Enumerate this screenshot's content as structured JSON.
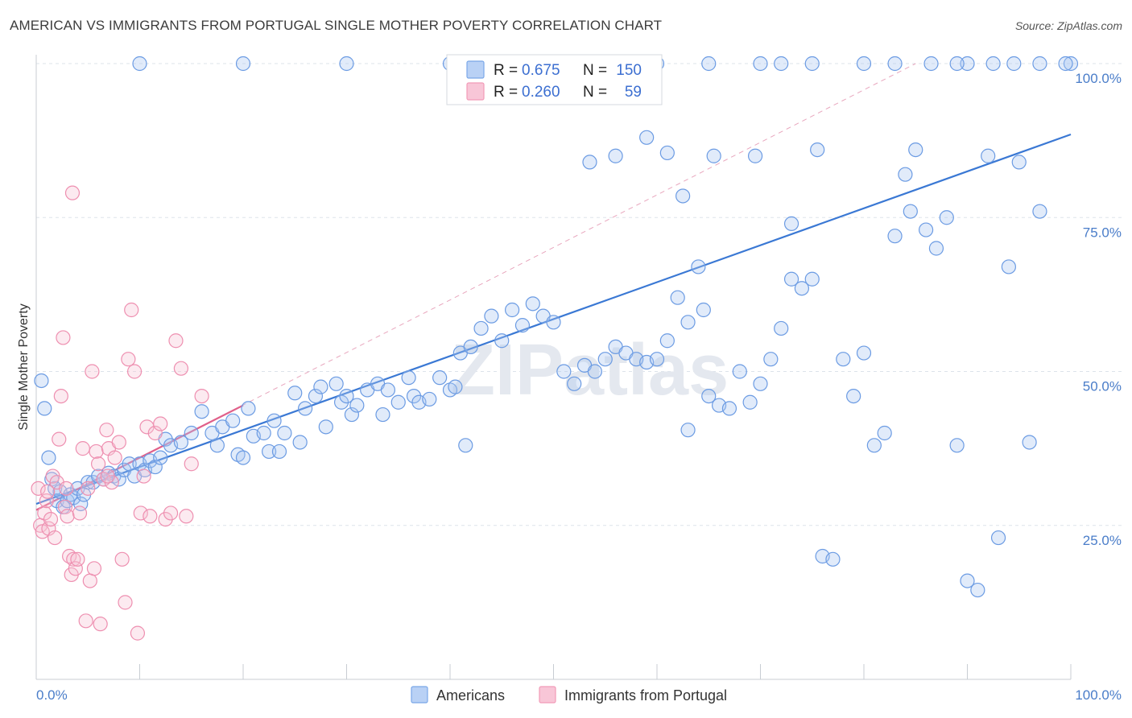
{
  "title": "AMERICAN VS IMMIGRANTS FROM PORTUGAL SINGLE MOTHER POVERTY CORRELATION CHART",
  "source": "Source: ZipAtlas.com",
  "watermark": "ZIPatlas",
  "chart_data": {
    "type": "scatter",
    "ylabel": "Single Mother Poverty",
    "xlim": [
      0,
      100
    ],
    "ylim": [
      0,
      100
    ],
    "x_tick_labels": [
      "0.0%",
      "100.0%"
    ],
    "y_ticks": [
      25,
      50,
      75,
      100
    ],
    "y_tick_labels": [
      "25.0%",
      "50.0%",
      "75.0%",
      "100.0%"
    ],
    "grid": true,
    "legend_top": [
      {
        "r_label": "R =",
        "r_value": "0.675",
        "n_label": "N =",
        "n_value": "150",
        "color": "#7aa7e8"
      },
      {
        "r_label": "R =",
        "r_value": "0.260",
        "n_label": "N =",
        "n_value": "59",
        "color": "#f29bb8"
      }
    ],
    "series": [
      {
        "name": "Americans",
        "color": "#7aa7e8",
        "line_color": "#3a78d4",
        "trend": {
          "x": [
            0,
            100
          ],
          "y": [
            28.5,
            88.5
          ]
        },
        "points": [
          [
            0.5,
            48.5
          ],
          [
            0.8,
            44
          ],
          [
            1.2,
            36
          ],
          [
            1.5,
            32.5
          ],
          [
            1.8,
            31
          ],
          [
            2,
            29
          ],
          [
            2.3,
            30.5
          ],
          [
            2.6,
            28
          ],
          [
            3,
            29
          ],
          [
            3.3,
            30
          ],
          [
            3.6,
            29.5
          ],
          [
            4,
            31
          ],
          [
            4.3,
            28.5
          ],
          [
            4.6,
            30
          ],
          [
            5,
            32
          ],
          [
            5.5,
            32
          ],
          [
            6,
            33
          ],
          [
            6.5,
            32.5
          ],
          [
            7,
            33.5
          ],
          [
            7.5,
            33
          ],
          [
            8,
            32.5
          ],
          [
            8.5,
            34
          ],
          [
            9,
            35
          ],
          [
            9.5,
            33
          ],
          [
            10,
            35
          ],
          [
            10.5,
            34
          ],
          [
            11,
            35.5
          ],
          [
            11.5,
            34.5
          ],
          [
            12,
            36
          ],
          [
            12.5,
            39
          ],
          [
            13,
            38
          ],
          [
            14,
            38.5
          ],
          [
            15,
            40
          ],
          [
            16,
            43.5
          ],
          [
            17,
            40
          ],
          [
            17.5,
            38
          ],
          [
            18,
            41
          ],
          [
            19,
            42
          ],
          [
            19.5,
            36.5
          ],
          [
            20,
            36
          ],
          [
            20.5,
            44
          ],
          [
            21,
            39.5
          ],
          [
            22,
            40
          ],
          [
            22.5,
            37
          ],
          [
            23,
            42
          ],
          [
            23.5,
            37
          ],
          [
            24,
            40
          ],
          [
            25,
            46.5
          ],
          [
            25.5,
            38.5
          ],
          [
            26,
            44
          ],
          [
            27,
            46
          ],
          [
            27.5,
            47.5
          ],
          [
            28,
            41
          ],
          [
            29,
            48
          ],
          [
            29.5,
            45
          ],
          [
            30,
            46
          ],
          [
            30.5,
            43
          ],
          [
            31,
            44.5
          ],
          [
            32,
            47
          ],
          [
            33,
            48
          ],
          [
            33.5,
            43
          ],
          [
            34,
            47
          ],
          [
            35,
            45
          ],
          [
            36,
            49
          ],
          [
            36.5,
            46
          ],
          [
            37,
            45
          ],
          [
            38,
            45.5
          ],
          [
            39,
            49
          ],
          [
            40,
            47
          ],
          [
            40.5,
            47.5
          ],
          [
            41,
            53
          ],
          [
            41.5,
            38
          ],
          [
            42,
            54
          ],
          [
            43,
            57
          ],
          [
            44,
            59
          ],
          [
            45,
            55
          ],
          [
            46,
            60
          ],
          [
            47,
            57.5
          ],
          [
            48,
            61
          ],
          [
            49,
            59
          ],
          [
            50,
            58
          ],
          [
            51,
            50
          ],
          [
            52,
            48
          ],
          [
            53,
            51
          ],
          [
            54,
            50
          ],
          [
            55,
            52
          ],
          [
            56,
            54
          ],
          [
            57,
            53
          ],
          [
            58,
            52
          ],
          [
            59,
            51.5
          ],
          [
            60,
            52
          ],
          [
            61,
            55
          ],
          [
            62,
            62
          ],
          [
            63,
            58
          ],
          [
            64,
            67
          ],
          [
            64.5,
            60
          ],
          [
            65,
            46
          ],
          [
            66,
            44.5
          ],
          [
            67,
            44
          ],
          [
            68,
            50
          ],
          [
            69,
            45
          ],
          [
            70,
            48
          ],
          [
            71,
            52
          ],
          [
            72,
            57
          ],
          [
            73,
            65
          ],
          [
            74,
            63.5
          ],
          [
            75,
            65
          ],
          [
            76,
            20
          ],
          [
            77,
            19.5
          ],
          [
            78,
            52
          ],
          [
            79,
            46
          ],
          [
            80,
            53
          ],
          [
            81,
            38
          ],
          [
            82,
            40
          ],
          [
            83,
            72
          ],
          [
            84,
            82
          ],
          [
            84.5,
            76
          ],
          [
            85,
            86
          ],
          [
            86,
            73
          ],
          [
            87,
            70
          ],
          [
            88,
            75
          ],
          [
            89,
            38
          ],
          [
            90,
            16
          ],
          [
            91,
            14.5
          ],
          [
            92,
            85
          ],
          [
            93,
            23
          ],
          [
            94,
            67
          ],
          [
            95,
            84
          ],
          [
            96,
            38.5
          ],
          [
            97,
            76
          ],
          [
            53.5,
            84
          ],
          [
            56,
            85
          ],
          [
            59,
            88
          ],
          [
            61,
            85.5
          ],
          [
            62.5,
            78.5
          ],
          [
            65.5,
            85
          ],
          [
            69.5,
            85
          ],
          [
            73,
            74
          ],
          [
            75.5,
            86
          ],
          [
            63,
            40.5
          ],
          [
            10,
            100
          ],
          [
            20,
            100
          ],
          [
            30,
            100
          ],
          [
            40,
            100
          ],
          [
            50,
            100
          ],
          [
            60,
            100
          ],
          [
            65,
            100
          ],
          [
            70,
            100
          ],
          [
            72,
            100
          ],
          [
            75,
            100
          ],
          [
            80,
            100
          ],
          [
            83,
            100
          ],
          [
            90,
            100
          ],
          [
            92.5,
            100
          ],
          [
            100,
            100
          ],
          [
            86.5,
            100
          ],
          [
            89,
            100
          ],
          [
            94.5,
            100
          ],
          [
            97,
            100
          ],
          [
            99.5,
            100
          ]
        ]
      },
      {
        "name": "Immigrants from Portugal",
        "color": "#f29bb8",
        "line_color": "#e0608a",
        "trend": {
          "x": [
            0,
            20
          ],
          "y": [
            27.5,
            44.5
          ]
        },
        "dash_trend": {
          "x": [
            0,
            85
          ],
          "y": [
            27.5,
            100
          ]
        },
        "points": [
          [
            0.2,
            31
          ],
          [
            0.4,
            25
          ],
          [
            0.6,
            24
          ],
          [
            0.8,
            27
          ],
          [
            1,
            29
          ],
          [
            1.2,
            24.5
          ],
          [
            1.4,
            26
          ],
          [
            1.6,
            33
          ],
          [
            1.8,
            23
          ],
          [
            2,
            32
          ],
          [
            2.2,
            39
          ],
          [
            2.4,
            46
          ],
          [
            2.6,
            55.5
          ],
          [
            2.8,
            28
          ],
          [
            3,
            26.5
          ],
          [
            3.2,
            20
          ],
          [
            3.4,
            17
          ],
          [
            3.6,
            19.5
          ],
          [
            3.8,
            18
          ],
          [
            4,
            19.5
          ],
          [
            4.2,
            27
          ],
          [
            4.5,
            37.5
          ],
          [
            4.8,
            9.5
          ],
          [
            5,
            31
          ],
          [
            5.2,
            16
          ],
          [
            5.4,
            50
          ],
          [
            5.6,
            18
          ],
          [
            5.8,
            37
          ],
          [
            6,
            35
          ],
          [
            6.2,
            9
          ],
          [
            6.5,
            32.5
          ],
          [
            6.8,
            40.5
          ],
          [
            7,
            37.5
          ],
          [
            7.3,
            32
          ],
          [
            7.6,
            36
          ],
          [
            8,
            38.5
          ],
          [
            8.3,
            19.5
          ],
          [
            8.6,
            12.5
          ],
          [
            8.9,
            52
          ],
          [
            9.2,
            60
          ],
          [
            9.5,
            50
          ],
          [
            9.8,
            7.5
          ],
          [
            10.1,
            27
          ],
          [
            10.4,
            33
          ],
          [
            10.7,
            41
          ],
          [
            11,
            26.5
          ],
          [
            11.5,
            40
          ],
          [
            12,
            41.5
          ],
          [
            12.5,
            26
          ],
          [
            13,
            27
          ],
          [
            13.5,
            55
          ],
          [
            14,
            50.5
          ],
          [
            14.5,
            26.5
          ],
          [
            15,
            35
          ],
          [
            16,
            46
          ],
          [
            3.5,
            79
          ],
          [
            6.9,
            33
          ],
          [
            1.1,
            30.5
          ],
          [
            2.9,
            31
          ]
        ]
      }
    ]
  },
  "bottom_legend": [
    {
      "label": "Americans",
      "color": "#7aa7e8"
    },
    {
      "label": "Immigrants from Portugal",
      "color": "#f29bb8"
    }
  ]
}
